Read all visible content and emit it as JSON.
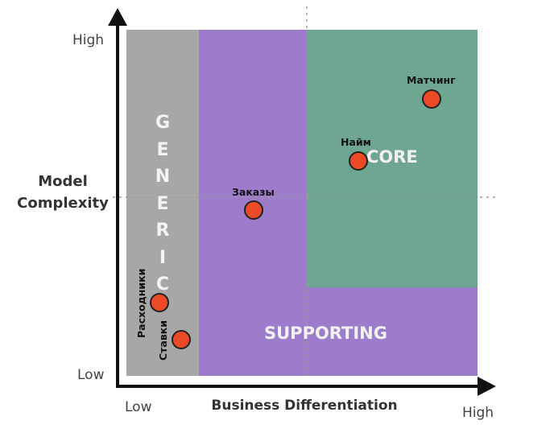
{
  "axes": {
    "y_title_line1": "Model",
    "y_title_line2": "Complexity",
    "y_high": "High",
    "y_low": "Low",
    "x_title": "Business Differentiation",
    "x_low": "Low",
    "x_high": "High"
  },
  "regions": {
    "generic_letters": [
      "G",
      "E",
      "N",
      "E",
      "R",
      "I",
      "C"
    ],
    "core": "CORE",
    "supporting": "SUPPORTING"
  },
  "colors": {
    "generic": "#a7a7a7",
    "purple": "#9d7dcb",
    "core": "#6fa691",
    "point": "#ea4a26"
  },
  "points": [
    {
      "label": "Матчинг"
    },
    {
      "label": "Найм"
    },
    {
      "label": "Заказы"
    },
    {
      "label": "Расходники"
    },
    {
      "label": "Ставки"
    }
  ]
}
